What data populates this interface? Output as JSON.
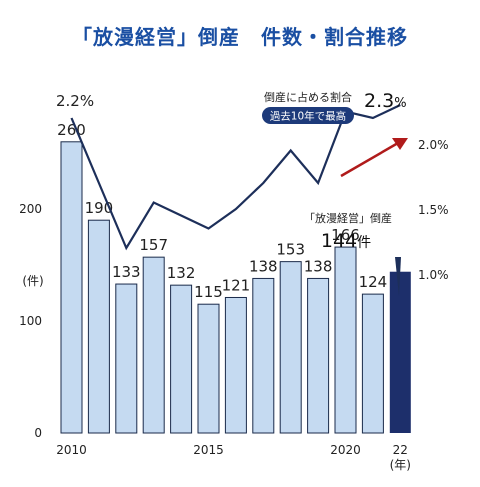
{
  "title": "「放漫経営」倒産　件数・割合推移",
  "colors": {
    "title": "#1a4fa3",
    "bar": "#c5daf1",
    "bar_edge": "#1a2a4a",
    "bar_highlight": "#1d2f6b",
    "line": "#1d2f5a",
    "badge_bg": "#1d3a7a",
    "arrow": "#b01b1b"
  },
  "chart_data": {
    "type": "bar",
    "categories": [
      "2010",
      "2011",
      "2012",
      "2013",
      "2014",
      "2015",
      "2016",
      "2017",
      "2018",
      "2019",
      "2020",
      "2021",
      "22"
    ],
    "x_tick_labels": [
      "2010",
      "2015",
      "2020",
      "22"
    ],
    "x_unit": "(年)",
    "series": [
      {
        "values": [
          260,
          190,
          133,
          157,
          132,
          115,
          121,
          138,
          153,
          138,
          166,
          124,
          144
        ]
      },
      {
        "axis": "right",
        "values": [
          2.2,
          1.7,
          1.2,
          1.55,
          1.45,
          1.35,
          1.5,
          1.7,
          1.95,
          1.7,
          2.25,
          2.2,
          2.3
        ]
      }
    ],
    "ylim_left": [
      0,
      300
    ],
    "yticks_left": [
      "0",
      "100",
      "200"
    ],
    "y_left_unit": "(件)",
    "ylim_right": [
      0.5,
      2.5
    ],
    "yticks_right": [
      "1.0%",
      "1.5%",
      "2.0%"
    ],
    "line_start_label": "2.2%",
    "highlight_index": 12
  },
  "annotations": {
    "ratio_caption": "倒産に占める割合",
    "ratio_badge": "過去10年で最高",
    "ratio_value": "2.3",
    "ratio_unit": "%",
    "bar_caption": "「放漫経営」倒産",
    "bar_value": "144",
    "bar_unit": "件"
  }
}
